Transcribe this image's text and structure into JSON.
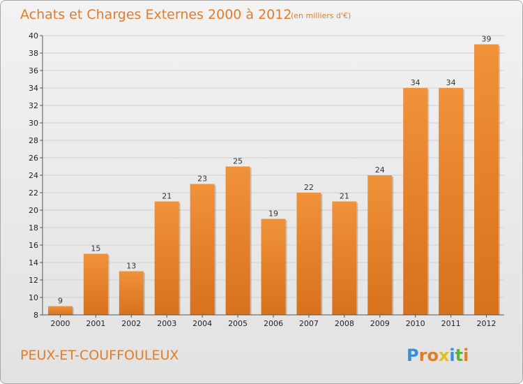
{
  "chart_data": {
    "type": "bar",
    "title": "Achats et Charges Externes 2000 à 2012",
    "subtitle": "(en milliers d'€)",
    "categories": [
      "2000",
      "2001",
      "2002",
      "2003",
      "2004",
      "2005",
      "2006",
      "2007",
      "2008",
      "2009",
      "2010",
      "2011",
      "2012"
    ],
    "values": [
      9,
      15,
      13,
      21,
      23,
      25,
      19,
      22,
      21,
      24,
      34,
      34,
      39
    ],
    "ylim": [
      8,
      40
    ],
    "yticks": [
      8,
      10,
      12,
      14,
      16,
      18,
      20,
      22,
      24,
      26,
      28,
      30,
      32,
      34,
      36,
      38,
      40
    ],
    "grid": true,
    "bar_color": "#f0923a",
    "bar_color_dark": "#d8711c",
    "title_color": "#e07d2a"
  },
  "footer": {
    "commune": "PEUX-ET-COUFFOULEUX",
    "logo": {
      "letters": [
        "P",
        "r",
        "o",
        "x",
        "i",
        "t",
        "i"
      ],
      "colors": [
        "#3a8fd6",
        "#e07d2a",
        "#e07d2a",
        "#e0c020",
        "#3a8fd6",
        "#60b040",
        "#e07d2a"
      ]
    }
  }
}
